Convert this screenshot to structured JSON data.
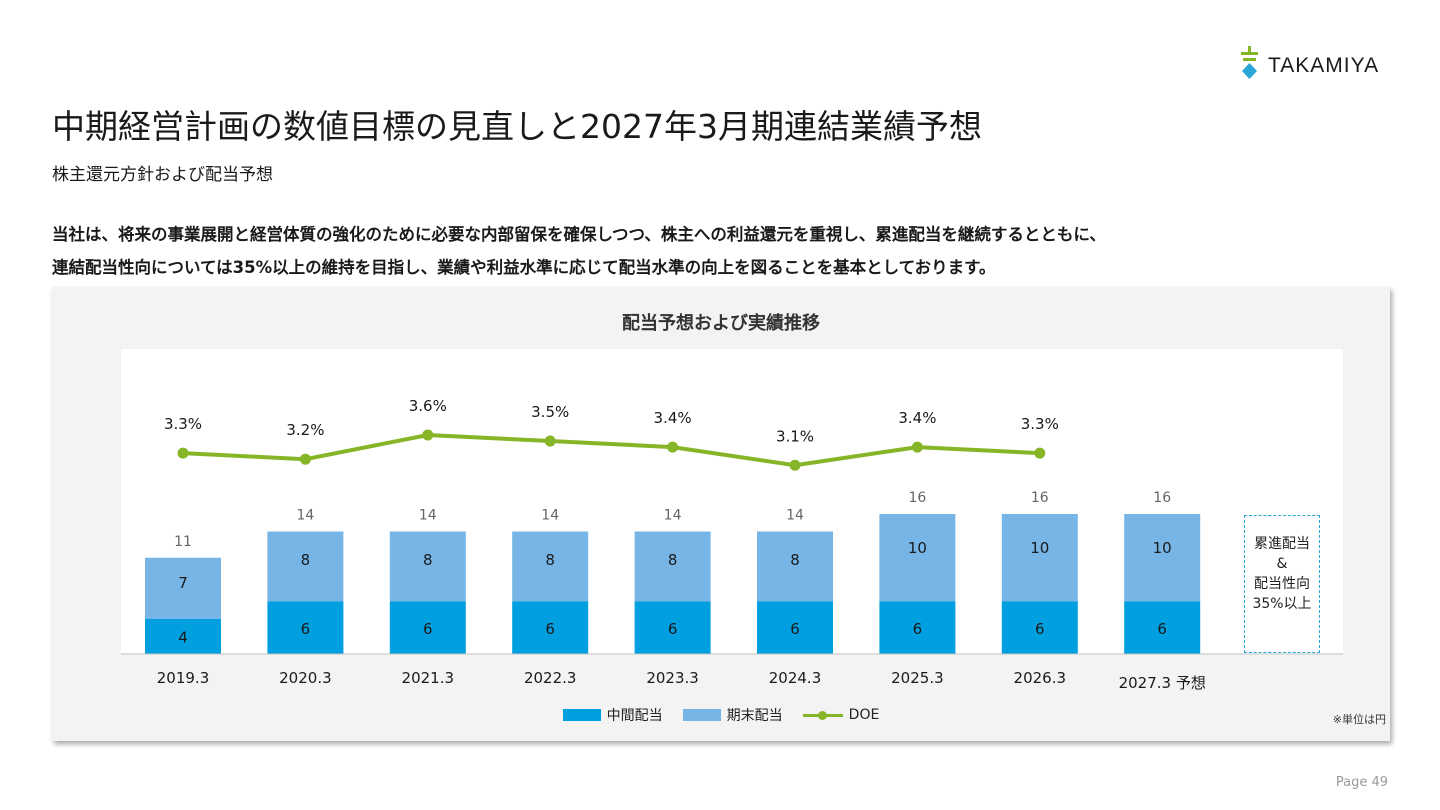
{
  "brand": {
    "name": "TAKAMIYA",
    "colors": {
      "accent_teal": "#2aa6d8",
      "logo_green": "#86b528"
    }
  },
  "header": {
    "title": "中期経営計画の数値目標の見直しと2027年3月期連結業績予想",
    "subtitle": "株主還元方針および配当予想"
  },
  "lead": {
    "line1": "当社は、将来の事業展開と経営体質の強化のために必要な内部留保を確保しつつ、株主への利益還元を重視し、累進配当を継続するとともに、",
    "line2": "連結配当性向については35%以上の維持を目指し、業績や利益水準に応じて配当水準の向上を図ることを基本としております。"
  },
  "chart_data": {
    "type": "bar",
    "title": "配当予想および実績推移",
    "categories": [
      "2019.3",
      "2020.3",
      "2021.3",
      "2022.3",
      "2023.3",
      "2024.3",
      "2025.3",
      "2026.3",
      "2027.3 予想"
    ],
    "series": [
      {
        "name": "中間配当",
        "values": [
          4,
          6,
          6,
          6,
          6,
          6,
          6,
          6,
          6
        ],
        "color": "#00a0e0"
      },
      {
        "name": "期末配当",
        "values": [
          7,
          8,
          8,
          8,
          8,
          8,
          10,
          10,
          10
        ],
        "color": "#76b5e6"
      }
    ],
    "totals": [
      11,
      14,
      14,
      14,
      14,
      14,
      16,
      16,
      16
    ],
    "line": {
      "name": "DOE",
      "values": [
        3.3,
        3.2,
        3.6,
        3.5,
        3.4,
        3.1,
        3.4,
        3.3,
        null
      ],
      "labels": [
        "3.3%",
        "3.2%",
        "3.6%",
        "3.5%",
        "3.4%",
        "3.1%",
        "3.4%",
        "3.3%",
        ""
      ],
      "color": "#86b528"
    },
    "stacked": true,
    "legend_position": "bottom",
    "grid": false
  },
  "note_box": {
    "lines": [
      "累進配当",
      "&",
      "配当性向",
      "35%以上"
    ]
  },
  "unit_note": "※単位は円",
  "page": {
    "label": "Page 49"
  }
}
